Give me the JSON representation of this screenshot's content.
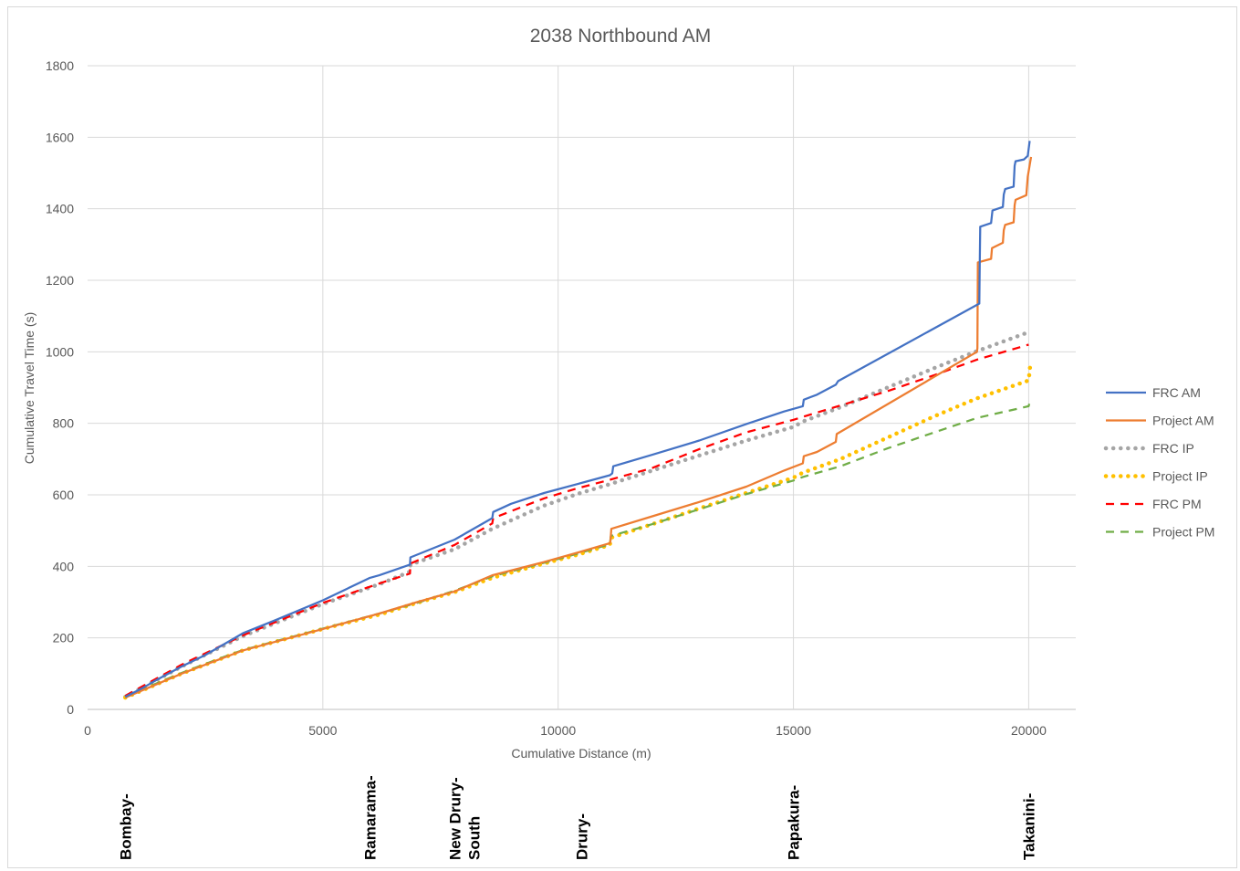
{
  "chart_data": {
    "type": "line",
    "title": "2038 Northbound AM",
    "xlabel": "Cumulative Distance (m)",
    "ylabel": "Cumulative Travel Time (s)",
    "xlim": [
      0,
      21000
    ],
    "ylim": [
      0,
      1800
    ],
    "xticks": [
      "0",
      "5000",
      "10000",
      "15000",
      "20000"
    ],
    "yticks": [
      "0",
      "200",
      "400",
      "600",
      "800",
      "1000",
      "1200",
      "1400",
      "1600",
      "1800"
    ],
    "grid": true,
    "legend_position": "right",
    "series": [
      {
        "name": "FRC AM",
        "color": "#4472C4",
        "style": "solid",
        "points": [
          [
            800,
            35
          ],
          [
            1200,
            62
          ],
          [
            1500,
            85
          ],
          [
            2000,
            120
          ],
          [
            2500,
            152
          ],
          [
            3000,
            190
          ],
          [
            3300,
            213
          ],
          [
            4000,
            250
          ],
          [
            5000,
            305
          ],
          [
            6000,
            368
          ],
          [
            6200,
            375
          ],
          [
            6850,
            405
          ],
          [
            6860,
            425
          ],
          [
            7800,
            475
          ],
          [
            8600,
            535
          ],
          [
            8620,
            552
          ],
          [
            9000,
            575
          ],
          [
            9700,
            605
          ],
          [
            10400,
            630
          ],
          [
            11100,
            655
          ],
          [
            11150,
            660
          ],
          [
            11170,
            680
          ],
          [
            12000,
            712
          ],
          [
            13000,
            752
          ],
          [
            14000,
            798
          ],
          [
            14800,
            833
          ],
          [
            15200,
            848
          ],
          [
            15220,
            866
          ],
          [
            15500,
            880
          ],
          [
            15900,
            908
          ],
          [
            15950,
            918
          ],
          [
            18950,
            1135
          ],
          [
            18960,
            1250
          ],
          [
            18970,
            1350
          ],
          [
            19200,
            1360
          ],
          [
            19230,
            1395
          ],
          [
            19450,
            1405
          ],
          [
            19470,
            1440
          ],
          [
            19500,
            1455
          ],
          [
            19680,
            1462
          ],
          [
            19700,
            1520
          ],
          [
            19720,
            1533
          ],
          [
            19900,
            1538
          ],
          [
            19980,
            1548
          ],
          [
            20000,
            1568
          ],
          [
            20020,
            1590
          ]
        ]
      },
      {
        "name": "Project AM",
        "color": "#ED7D31",
        "style": "solid",
        "points": [
          [
            800,
            33
          ],
          [
            2000,
            100
          ],
          [
            3000,
            150
          ],
          [
            3300,
            165
          ],
          [
            5000,
            225
          ],
          [
            6200,
            268
          ],
          [
            7000,
            300
          ],
          [
            7800,
            330
          ],
          [
            8600,
            375
          ],
          [
            9700,
            412
          ],
          [
            10400,
            438
          ],
          [
            11100,
            465
          ],
          [
            11110,
            470
          ],
          [
            11130,
            505
          ],
          [
            12000,
            540
          ],
          [
            13000,
            580
          ],
          [
            14000,
            623
          ],
          [
            14800,
            668
          ],
          [
            15200,
            688
          ],
          [
            15220,
            708
          ],
          [
            15500,
            720
          ],
          [
            15900,
            748
          ],
          [
            15920,
            770
          ],
          [
            18900,
            1000
          ],
          [
            18910,
            1010
          ],
          [
            18920,
            1250
          ],
          [
            19200,
            1260
          ],
          [
            19220,
            1290
          ],
          [
            19450,
            1305
          ],
          [
            19470,
            1340
          ],
          [
            19500,
            1355
          ],
          [
            19680,
            1362
          ],
          [
            19700,
            1410
          ],
          [
            19720,
            1425
          ],
          [
            19950,
            1438
          ],
          [
            19980,
            1490
          ],
          [
            20050,
            1545
          ]
        ]
      },
      {
        "name": "FRC IP",
        "color": "#A5A5A5",
        "style": "dotted",
        "points": [
          [
            800,
            35
          ],
          [
            2000,
            120
          ],
          [
            3000,
            185
          ],
          [
            3300,
            205
          ],
          [
            5000,
            295
          ],
          [
            6200,
            350
          ],
          [
            6850,
            385
          ],
          [
            6860,
            405
          ],
          [
            7800,
            448
          ],
          [
            8600,
            505
          ],
          [
            9700,
            570
          ],
          [
            10400,
            602
          ],
          [
            11100,
            630
          ],
          [
            12000,
            668
          ],
          [
            13000,
            710
          ],
          [
            14000,
            752
          ],
          [
            15000,
            790
          ],
          [
            15200,
            805
          ],
          [
            16000,
            845
          ],
          [
            17000,
            900
          ],
          [
            18000,
            955
          ],
          [
            18900,
            1002
          ],
          [
            20000,
            1055
          ]
        ]
      },
      {
        "name": "Project IP",
        "color": "#FFC000",
        "style": "dotted",
        "points": [
          [
            800,
            33
          ],
          [
            2000,
            100
          ],
          [
            3000,
            150
          ],
          [
            3300,
            165
          ],
          [
            5000,
            225
          ],
          [
            6200,
            265
          ],
          [
            7000,
            298
          ],
          [
            7800,
            328
          ],
          [
            8600,
            368
          ],
          [
            9700,
            408
          ],
          [
            10400,
            432
          ],
          [
            11100,
            460
          ],
          [
            11120,
            480
          ],
          [
            12000,
            518
          ],
          [
            13000,
            562
          ],
          [
            14000,
            605
          ],
          [
            15000,
            648
          ],
          [
            15200,
            662
          ],
          [
            16000,
            700
          ],
          [
            17000,
            760
          ],
          [
            18000,
            820
          ],
          [
            18900,
            870
          ],
          [
            20000,
            920
          ],
          [
            20030,
            960
          ]
        ]
      },
      {
        "name": "FRC PM",
        "color": "#FF0000",
        "style": "dashed",
        "points": [
          [
            800,
            38
          ],
          [
            2000,
            125
          ],
          [
            3000,
            188
          ],
          [
            3300,
            207
          ],
          [
            5000,
            298
          ],
          [
            6200,
            352
          ],
          [
            6850,
            380
          ],
          [
            6860,
            408
          ],
          [
            7800,
            460
          ],
          [
            8600,
            520
          ],
          [
            8620,
            535
          ],
          [
            9700,
            590
          ],
          [
            10400,
            618
          ],
          [
            11100,
            642
          ],
          [
            12000,
            675
          ],
          [
            13000,
            728
          ],
          [
            14000,
            775
          ],
          [
            15000,
            810
          ],
          [
            15200,
            818
          ],
          [
            16000,
            850
          ],
          [
            17000,
            890
          ],
          [
            18000,
            935
          ],
          [
            18900,
            978
          ],
          [
            20000,
            1020
          ]
        ]
      },
      {
        "name": "Project PM",
        "color": "#70AD47",
        "style": "dashed",
        "points": [
          [
            800,
            36
          ],
          [
            2000,
            102
          ],
          [
            3000,
            152
          ],
          [
            3300,
            166
          ],
          [
            5000,
            226
          ],
          [
            6200,
            268
          ],
          [
            7000,
            298
          ],
          [
            7800,
            332
          ],
          [
            8600,
            372
          ],
          [
            9700,
            410
          ],
          [
            10400,
            435
          ],
          [
            11100,
            462
          ],
          [
            11120,
            485
          ],
          [
            12000,
            518
          ],
          [
            13000,
            560
          ],
          [
            14000,
            602
          ],
          [
            15000,
            640
          ],
          [
            15200,
            650
          ],
          [
            16000,
            680
          ],
          [
            17000,
            730
          ],
          [
            18000,
            775
          ],
          [
            18900,
            815
          ],
          [
            20000,
            848
          ],
          [
            20030,
            865
          ]
        ]
      }
    ],
    "stations": [
      {
        "name": "Bombay-",
        "x": 800
      },
      {
        "name": "Ramarama-",
        "x": 6000
      },
      {
        "name": "New Drury-\nSouth",
        "x": 8000
      },
      {
        "name": "Drury-",
        "x": 10500
      },
      {
        "name": "Papakura-",
        "x": 15000
      },
      {
        "name": "Takanini-",
        "x": 20000
      }
    ]
  }
}
